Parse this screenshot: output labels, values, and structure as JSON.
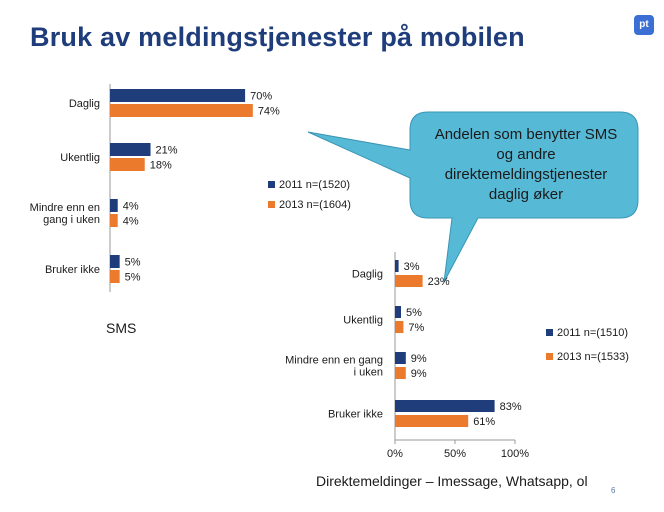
{
  "title": "Bruk av meldingstjenester på mobilen",
  "logo_text": "pt",
  "page_number": "6",
  "colors": {
    "title": "#1f3d7a",
    "series_2011": "#1f3d7a",
    "series_2013": "#ec7a2d",
    "callout_fill": "#56b9d6",
    "callout_stroke": "#3a96b4"
  },
  "callout": {
    "lines": [
      "Andelen som benytter SMS",
      "og andre",
      "direktemeldingstjenester",
      "daglig øker"
    ]
  },
  "chart_data": [
    {
      "type": "bar",
      "orientation": "horizontal",
      "title": "SMS",
      "categories": [
        [
          "Daglig"
        ],
        [
          "Ukentlig"
        ],
        [
          "Mindre enn en",
          "gang i uken"
        ],
        [
          "Bruker ikke"
        ]
      ],
      "series": [
        {
          "name": "2011 n=(1520)",
          "values": [
            70,
            21,
            4,
            5
          ]
        },
        {
          "name": "2013 n=(1604)",
          "values": [
            74,
            18,
            4,
            5
          ]
        }
      ],
      "value_labels": [
        [
          "70%",
          "21%",
          "4%",
          "5%"
        ],
        [
          "74%",
          "18%",
          "4%",
          "5%"
        ]
      ],
      "xlim": [
        0,
        100
      ],
      "legend": "right"
    },
    {
      "type": "bar",
      "orientation": "horizontal",
      "title": "Direktemeldinger – Imessage, Whatsapp, ol",
      "categories": [
        [
          "Daglig"
        ],
        [
          "Ukentlig"
        ],
        [
          "Mindre enn en gang",
          "i uken"
        ],
        [
          "Bruker ikke"
        ]
      ],
      "series": [
        {
          "name": "2011 n=(1510)",
          "values": [
            3,
            5,
            9,
            83
          ]
        },
        {
          "name": "2013 n=(1533)",
          "values": [
            23,
            7,
            9,
            61
          ]
        }
      ],
      "value_labels": [
        [
          "3%",
          "5%",
          "9%",
          "83%"
        ],
        [
          "23%",
          "7%",
          "9%",
          "61%"
        ]
      ],
      "xlim": [
        0,
        100
      ],
      "xticks": [
        "0%",
        "50%",
        "100%"
      ],
      "legend": "right"
    }
  ]
}
